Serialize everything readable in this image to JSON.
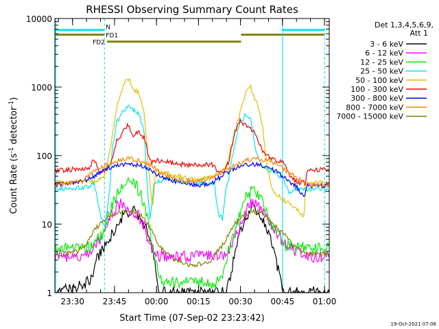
{
  "chart_data": {
    "type": "line",
    "title": "RHESSI Observing Summary Count Rates",
    "xlabel": "Start Time (07-Sep-02 23:23:42)",
    "ylabel_main": "Count Rate (s",
    "ylabel_sup1": "-1",
    "ylabel_mid": " detector",
    "ylabel_sup2": "-1",
    "ylabel_end": ")",
    "y_scale": "log",
    "ylim": [
      1,
      10000
    ],
    "xlim_minutes": [
      0,
      98
    ],
    "y_ticks": [
      {
        "v": 1,
        "label": "1"
      },
      {
        "v": 10,
        "label": "10"
      },
      {
        "v": 100,
        "label": "100"
      },
      {
        "v": 1000,
        "label": "1000"
      },
      {
        "v": 10000,
        "label": "10000"
      }
    ],
    "x_ticks": [
      {
        "m": 6.3,
        "label": "23:30"
      },
      {
        "m": 21.3,
        "label": "23:45"
      },
      {
        "m": 36.3,
        "label": "00:00"
      },
      {
        "m": 51.3,
        "label": "00:15"
      },
      {
        "m": 66.3,
        "label": "00:30"
      },
      {
        "m": 81.3,
        "label": "00:45"
      },
      {
        "m": 96.3,
        "label": "01:00"
      }
    ],
    "legend_header1": "Det 1,3,4,5,6,9,",
    "legend_header2": "Att 1",
    "legend_position": "right",
    "timestamp": "19-Oct-2021 07:06",
    "attenuator_lines_minutes": [
      17.7,
      81.3,
      96.3
    ],
    "attenuator_line_solid_minutes": 0.3,
    "flags": [
      {
        "label": "N",
        "color": "#00e5ee",
        "y": 6800,
        "segments": [
          [
            0,
            17.7
          ],
          [
            81.3,
            96.3
          ]
        ]
      },
      {
        "label": "FD1",
        "color": "#808000",
        "y": 5800,
        "segments": [
          [
            0,
            17.7
          ],
          [
            66.5,
            96.3
          ]
        ]
      },
      {
        "label": "FD2",
        "color": "#808000",
        "y": 4600,
        "segments": [
          [
            18.6,
            66.5
          ]
        ]
      }
    ],
    "series": [
      {
        "name": "3 - 6 keV",
        "color": "#000000",
        "points": [
          [
            0,
            1
          ],
          [
            13,
            1.5
          ],
          [
            15,
            3
          ],
          [
            18,
            5
          ],
          [
            21,
            8
          ],
          [
            24,
            12
          ],
          [
            28,
            17
          ],
          [
            30,
            13
          ],
          [
            32,
            10
          ],
          [
            34,
            6
          ],
          [
            36,
            2.5
          ],
          [
            37,
            1
          ],
          [
            61,
            1
          ],
          [
            63,
            2
          ],
          [
            65,
            5
          ],
          [
            67,
            9
          ],
          [
            69,
            14
          ],
          [
            71,
            19
          ],
          [
            73,
            15
          ],
          [
            75,
            10
          ],
          [
            77,
            6
          ],
          [
            80,
            2
          ],
          [
            82,
            1
          ],
          [
            98,
            1
          ]
        ]
      },
      {
        "name": "6 - 12 keV",
        "color": "#ff00ff",
        "points": [
          [
            0,
            3.4
          ],
          [
            11,
            3.4
          ],
          [
            13,
            4
          ],
          [
            16,
            6
          ],
          [
            18,
            10
          ],
          [
            20,
            13
          ],
          [
            22,
            18
          ],
          [
            24,
            21
          ],
          [
            26,
            16
          ],
          [
            28,
            15
          ],
          [
            30,
            13
          ],
          [
            32,
            9
          ],
          [
            34,
            5
          ],
          [
            36,
            3.4
          ],
          [
            60,
            3.4
          ],
          [
            62,
            4
          ],
          [
            64,
            6
          ],
          [
            67,
            11
          ],
          [
            69,
            17
          ],
          [
            71,
            22
          ],
          [
            73,
            18
          ],
          [
            75,
            14
          ],
          [
            77,
            10
          ],
          [
            79,
            8
          ],
          [
            81,
            6
          ],
          [
            83,
            5
          ],
          [
            86,
            4
          ],
          [
            89,
            3.4
          ],
          [
            98,
            3.4
          ]
        ]
      },
      {
        "name": "12 - 25 keV",
        "color": "#00ee00",
        "points": [
          [
            0,
            4.5
          ],
          [
            11,
            4.5
          ],
          [
            14,
            5
          ],
          [
            17,
            7
          ],
          [
            19,
            13
          ],
          [
            21,
            22
          ],
          [
            23,
            30
          ],
          [
            25,
            40
          ],
          [
            27,
            43
          ],
          [
            29,
            38
          ],
          [
            31,
            24
          ],
          [
            33,
            12
          ],
          [
            35,
            5
          ],
          [
            37,
            2
          ],
          [
            38,
            1.4
          ],
          [
            58,
            1.4
          ],
          [
            60,
            2
          ],
          [
            62,
            4
          ],
          [
            64,
            7
          ],
          [
            66,
            14
          ],
          [
            68,
            23
          ],
          [
            70,
            30
          ],
          [
            72,
            28
          ],
          [
            74,
            22
          ],
          [
            76,
            14
          ],
          [
            78,
            9
          ],
          [
            80,
            7
          ],
          [
            82,
            5
          ],
          [
            85,
            4.5
          ],
          [
            98,
            4.5
          ]
        ]
      },
      {
        "name": "25 - 50 keV",
        "color": "#00e5ee",
        "points": [
          [
            0,
            32
          ],
          [
            12,
            35
          ],
          [
            14,
            40
          ],
          [
            16,
            15
          ],
          [
            17.5,
            9
          ],
          [
            18.6,
            14
          ],
          [
            19.5,
            30
          ],
          [
            20.5,
            120
          ],
          [
            22,
            300
          ],
          [
            24,
            420
          ],
          [
            26,
            520
          ],
          [
            28,
            450
          ],
          [
            30,
            410
          ],
          [
            32,
            200
          ],
          [
            33,
            35
          ],
          [
            34,
            12
          ],
          [
            35.5,
            40
          ],
          [
            40,
            46
          ],
          [
            50,
            40
          ],
          [
            56,
            40
          ],
          [
            57,
            38
          ],
          [
            58.5,
            13
          ],
          [
            60,
            12
          ],
          [
            61,
            34
          ],
          [
            62,
            45
          ],
          [
            64,
            130
          ],
          [
            66,
            290
          ],
          [
            68,
            380
          ],
          [
            70,
            330
          ],
          [
            72,
            110
          ],
          [
            74,
            70
          ],
          [
            76,
            62
          ],
          [
            78,
            60
          ],
          [
            80,
            52
          ],
          [
            81,
            48
          ],
          [
            82,
            40
          ],
          [
            83.5,
            30
          ],
          [
            86,
            32
          ],
          [
            92,
            32
          ],
          [
            98,
            32
          ]
        ]
      },
      {
        "name": "50 - 100 keV",
        "color": "#e0c000",
        "points": [
          [
            0,
            40
          ],
          [
            14,
            42
          ],
          [
            16,
            45
          ],
          [
            18,
            55
          ],
          [
            20,
            150
          ],
          [
            22,
            500
          ],
          [
            24,
            900
          ],
          [
            25,
            1200
          ],
          [
            26,
            1400
          ],
          [
            28,
            900
          ],
          [
            30,
            850
          ],
          [
            32,
            380
          ],
          [
            34,
            36
          ],
          [
            35,
            18
          ],
          [
            36,
            60
          ],
          [
            40,
            55
          ],
          [
            50,
            45
          ],
          [
            56,
            48
          ],
          [
            58,
            52
          ],
          [
            60,
            60
          ],
          [
            62,
            90
          ],
          [
            64,
            200
          ],
          [
            66,
            400
          ],
          [
            68,
            800
          ],
          [
            70,
            1000
          ],
          [
            72,
            600
          ],
          [
            74,
            300
          ],
          [
            76,
            60
          ],
          [
            78,
            30
          ],
          [
            80,
            26
          ],
          [
            82,
            22
          ],
          [
            84,
            20
          ],
          [
            86,
            17
          ],
          [
            88,
            14
          ],
          [
            89,
            13
          ],
          [
            89.5,
            38
          ],
          [
            93,
            40
          ],
          [
            98,
            40
          ]
        ]
      },
      {
        "name": "100 - 300 keV",
        "color": "#ee0000",
        "points": [
          [
            0,
            60
          ],
          [
            12,
            65
          ],
          [
            13,
            75
          ],
          [
            14,
            90
          ],
          [
            16,
            55
          ],
          [
            18,
            60
          ],
          [
            20,
            80
          ],
          [
            22,
            160
          ],
          [
            24,
            210
          ],
          [
            26,
            290
          ],
          [
            28,
            200
          ],
          [
            30,
            220
          ],
          [
            32,
            180
          ],
          [
            34,
            80
          ],
          [
            36,
            85
          ],
          [
            40,
            80
          ],
          [
            48,
            72
          ],
          [
            56,
            75
          ],
          [
            58,
            60
          ],
          [
            60,
            56
          ],
          [
            62,
            80
          ],
          [
            64,
            200
          ],
          [
            66,
            320
          ],
          [
            68,
            270
          ],
          [
            70,
            250
          ],
          [
            72,
            200
          ],
          [
            74,
            120
          ],
          [
            76,
            100
          ],
          [
            78,
            90
          ],
          [
            80,
            82
          ],
          [
            82,
            75
          ],
          [
            84,
            50
          ],
          [
            86,
            42
          ],
          [
            88,
            40
          ],
          [
            89.5,
            40
          ],
          [
            90,
            62
          ],
          [
            96,
            62
          ],
          [
            98,
            62
          ]
        ]
      },
      {
        "name": "300 - 800 keV",
        "color": "#0000ee",
        "points": [
          [
            0,
            37
          ],
          [
            10,
            42
          ],
          [
            13,
            48
          ],
          [
            16,
            55
          ],
          [
            19,
            65
          ],
          [
            22,
            73
          ],
          [
            26,
            75
          ],
          [
            28,
            74
          ],
          [
            31,
            70
          ],
          [
            33,
            65
          ],
          [
            36,
            55
          ],
          [
            40,
            45
          ],
          [
            45,
            40
          ],
          [
            50,
            37
          ],
          [
            55,
            38
          ],
          [
            58,
            45
          ],
          [
            61,
            55
          ],
          [
            64,
            65
          ],
          [
            67,
            72
          ],
          [
            71,
            75
          ],
          [
            74,
            72
          ],
          [
            77,
            65
          ],
          [
            80,
            55
          ],
          [
            83,
            45
          ],
          [
            86,
            36
          ],
          [
            88,
            28
          ],
          [
            89,
            26
          ],
          [
            90,
            36
          ],
          [
            98,
            37
          ]
        ]
      },
      {
        "name": "800 - 7000 keV",
        "color": "#ff8000",
        "points": [
          [
            0,
            36
          ],
          [
            10,
            45
          ],
          [
            13,
            55
          ],
          [
            16,
            65
          ],
          [
            19,
            75
          ],
          [
            22,
            85
          ],
          [
            26,
            90
          ],
          [
            29,
            88
          ],
          [
            32,
            80
          ],
          [
            35,
            68
          ],
          [
            38,
            56
          ],
          [
            42,
            48
          ],
          [
            46,
            43
          ],
          [
            50,
            42
          ],
          [
            54,
            44
          ],
          [
            57,
            50
          ],
          [
            60,
            58
          ],
          [
            63,
            68
          ],
          [
            66,
            78
          ],
          [
            70,
            88
          ],
          [
            73,
            90
          ],
          [
            76,
            85
          ],
          [
            79,
            75
          ],
          [
            82,
            62
          ],
          [
            85,
            52
          ],
          [
            88,
            44
          ],
          [
            91,
            38
          ],
          [
            95,
            36
          ],
          [
            98,
            36
          ]
        ]
      },
      {
        "name": "7000 - 15000 keV",
        "color": "#808000",
        "points": [
          [
            0,
            3.5
          ],
          [
            8,
            4
          ],
          [
            11,
            5
          ],
          [
            13,
            7
          ],
          [
            15,
            9
          ],
          [
            17,
            11
          ],
          [
            20,
            13.5
          ],
          [
            23,
            15
          ],
          [
            26,
            16
          ],
          [
            29,
            15
          ],
          [
            31,
            13
          ],
          [
            33,
            10
          ],
          [
            35,
            7.5
          ],
          [
            37,
            5
          ],
          [
            39,
            4
          ],
          [
            43,
            3
          ],
          [
            48,
            2.5
          ],
          [
            52,
            2.6
          ],
          [
            56,
            3
          ],
          [
            58,
            4
          ],
          [
            60,
            5
          ],
          [
            62,
            7
          ],
          [
            64,
            10
          ],
          [
            67,
            13
          ],
          [
            70,
            15.5
          ],
          [
            73,
            15
          ],
          [
            75,
            13
          ],
          [
            77,
            11
          ],
          [
            79,
            9
          ],
          [
            82,
            7
          ],
          [
            85,
            5
          ],
          [
            88,
            4
          ],
          [
            91,
            3.6
          ],
          [
            98,
            3.6
          ]
        ]
      }
    ]
  }
}
